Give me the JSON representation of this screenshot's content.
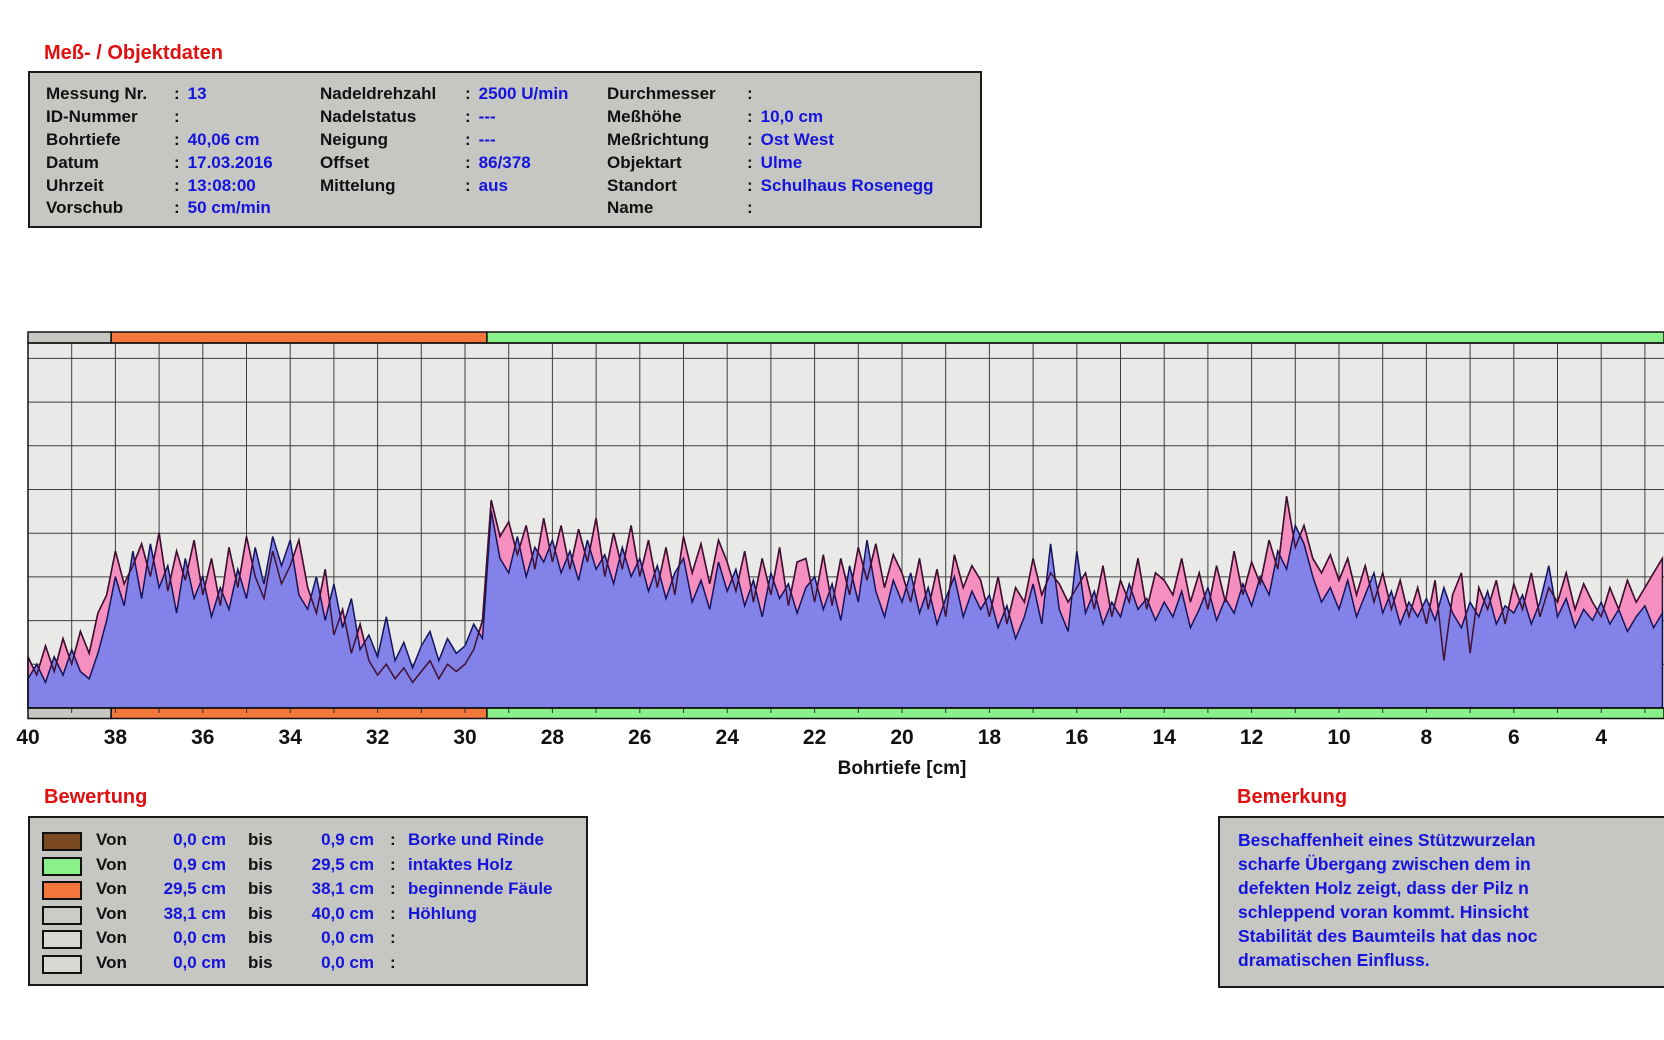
{
  "meta": {
    "title": "Meß- / Objektdaten",
    "columns": [
      {
        "rows": [
          {
            "label": "Messung Nr.",
            "value": "13"
          },
          {
            "label": "ID-Nummer",
            "value": ""
          },
          {
            "label": "Bohrtiefe",
            "value": "40,06 cm"
          },
          {
            "label": "Datum",
            "value": "17.03.2016"
          },
          {
            "label": "Uhrzeit",
            "value": "13:08:00"
          },
          {
            "label": "Vorschub",
            "value": "50 cm/min"
          }
        ]
      },
      {
        "rows": [
          {
            "label": "Nadeldrehzahl",
            "value": "2500 U/min"
          },
          {
            "label": "Nadelstatus",
            "value": "---"
          },
          {
            "label": "Neigung",
            "value": "---"
          },
          {
            "label": "Offset",
            "value": "86/378"
          },
          {
            "label": "Mittelung",
            "value": "aus"
          }
        ]
      },
      {
        "rows": [
          {
            "label": "Durchmesser",
            "value": ""
          },
          {
            "label": "Meßhöhe",
            "value": "10,0 cm"
          },
          {
            "label": "Meßrichtung",
            "value": "Ost West"
          },
          {
            "label": "Objektart",
            "value": "Ulme"
          },
          {
            "label": "Standort",
            "value": "Schulhaus Rosenegg"
          },
          {
            "label": "Name",
            "value": ""
          }
        ]
      }
    ]
  },
  "chart_data": {
    "type": "area",
    "xlabel": "Bohrtiefe [cm]",
    "x_axis": {
      "min": 0,
      "max": 40,
      "reversed": true,
      "tick_step": 2,
      "ticks": [
        40,
        38,
        36,
        34,
        32,
        30,
        28,
        26,
        24,
        22,
        20,
        18,
        16,
        14,
        12,
        10,
        8,
        6,
        4
      ],
      "visible_right_edge_cm": 2.6
    },
    "ylim": [
      0,
      100
    ],
    "grid": {
      "on": true,
      "x_spacing_cm": 1,
      "y_divisions": 8
    },
    "zones": [
      {
        "von": 0.0,
        "bis": 0.9,
        "color": "#7b4a21",
        "label": "Borke und Rinde"
      },
      {
        "von": 0.9,
        "bis": 29.5,
        "color": "#8af08a",
        "label": "intaktes Holz"
      },
      {
        "von": 29.5,
        "bis": 38.1,
        "color": "#f3773c",
        "label": "beginnende Fäule"
      },
      {
        "von": 38.1,
        "bis": 40.0,
        "color": "#c6c6c3",
        "label": "Höhlung"
      }
    ],
    "x_start": 40.0,
    "x_step": -0.2,
    "series": [
      {
        "name": "feed-curve",
        "fill": "#f48fc0",
        "stroke": "#401030",
        "values": [
          14,
          9,
          17,
          10,
          19,
          12,
          21,
          15,
          26,
          31,
          43,
          34,
          39,
          45,
          36,
          48,
          32,
          43,
          35,
          46,
          31,
          41,
          28,
          44,
          33,
          47,
          36,
          30,
          43,
          34,
          39,
          46,
          33,
          26,
          38,
          20,
          27,
          15,
          23,
          13,
          9,
          12,
          8,
          11,
          7,
          10,
          13,
          8,
          12,
          10,
          12,
          16,
          24,
          57,
          47,
          51,
          42,
          50,
          38,
          52,
          40,
          50,
          38,
          49,
          40,
          52,
          36,
          48,
          38,
          50,
          36,
          46,
          33,
          44,
          31,
          47,
          37,
          45,
          34,
          46,
          40,
          32,
          43,
          29,
          41,
          31,
          44,
          28,
          40,
          41,
          29,
          42,
          28,
          41,
          31,
          44,
          35,
          45,
          33,
          42,
          37,
          29,
          41,
          27,
          38,
          25,
          42,
          33,
          39,
          35,
          25,
          36,
          23,
          33,
          29,
          41,
          31,
          37,
          34,
          29,
          33,
          37,
          27,
          39,
          25,
          35,
          29,
          41,
          27,
          37,
          35,
          31,
          41,
          29,
          37,
          27,
          39,
          29,
          43,
          31,
          40,
          34,
          46,
          38,
          58,
          44,
          50,
          41,
          37,
          42,
          35,
          41,
          31,
          39,
          29,
          37,
          27,
          35,
          25,
          33,
          23,
          35,
          13,
          31,
          37,
          15,
          33,
          27,
          35,
          23,
          34,
          27,
          37,
          25,
          33,
          29,
          37,
          27,
          34,
          29,
          25,
          33,
          27,
          35,
          29,
          33,
          37,
          41
        ]
      },
      {
        "name": "drill-curve",
        "fill": "#8282e8",
        "stroke": "#14145a",
        "values": [
          8,
          12,
          7,
          14,
          9,
          16,
          10,
          8,
          15,
          24,
          36,
          28,
          43,
          30,
          45,
          33,
          39,
          26,
          41,
          30,
          36,
          25,
          33,
          27,
          38,
          30,
          44,
          34,
          47,
          39,
          46,
          31,
          27,
          36,
          24,
          34,
          22,
          30,
          16,
          20,
          14,
          25,
          13,
          18,
          11,
          17,
          21,
          13,
          19,
          15,
          17,
          23,
          19,
          54,
          41,
          37,
          47,
          36,
          44,
          40,
          46,
          37,
          43,
          35,
          46,
          38,
          42,
          34,
          44,
          36,
          41,
          32,
          39,
          30,
          37,
          41,
          29,
          35,
          27,
          40,
          32,
          38,
          28,
          35,
          25,
          37,
          30,
          34,
          26,
          33,
          36,
          27,
          34,
          24,
          39,
          29,
          46,
          32,
          25,
          35,
          29,
          37,
          26,
          33,
          23,
          30,
          36,
          25,
          32,
          27,
          31,
          22,
          28,
          19,
          25,
          34,
          23,
          45,
          27,
          21,
          43,
          26,
          32,
          23,
          29,
          25,
          34,
          27,
          30,
          24,
          29,
          25,
          32,
          22,
          27,
          33,
          24,
          30,
          26,
          34,
          28,
          36,
          31,
          43,
          38,
          50,
          45,
          36,
          29,
          33,
          27,
          35,
          25,
          31,
          37,
          26,
          32,
          23,
          29,
          25,
          30,
          24,
          33,
          26,
          22,
          29,
          25,
          32,
          23,
          28,
          26,
          31,
          23,
          29,
          39,
          25,
          30,
          22,
          27,
          24,
          29,
          23,
          27,
          21,
          25,
          28,
          22,
          26
        ]
      }
    ],
    "plot_bg": "#e9e9e7",
    "grid_color": "#3f3f3f"
  },
  "bewertung": {
    "title": "Bewertung",
    "von_label": "Von",
    "bis_label": "bis",
    "rows": [
      {
        "color": "#7b4a21",
        "von": "0,0 cm",
        "bis": "0,9 cm",
        "text": "Borke und Rinde"
      },
      {
        "color": "#8af08a",
        "von": "0,9 cm",
        "bis": "29,5 cm",
        "text": "intaktes Holz"
      },
      {
        "color": "#f3773c",
        "von": "29,5 cm",
        "bis": "38,1 cm",
        "text": "beginnende Fäule"
      },
      {
        "color": "#cbcbc8",
        "von": "38,1 cm",
        "bis": "40,0 cm",
        "text": "Höhlung"
      },
      {
        "color": "#d8d8d5",
        "von": "0,0 cm",
        "bis": "0,0 cm",
        "text": ""
      },
      {
        "color": "#d8d8d5",
        "von": "0,0 cm",
        "bis": "0,0 cm",
        "text": ""
      }
    ]
  },
  "bemerkung": {
    "title": "Bemerkung",
    "lines": [
      "Beschaffenheit eines Stützwurzelan",
      "scharfe Übergang zwischen dem in",
      "defekten Holz zeigt, dass der Pilz n",
      "schleppend voran kommt. Hinsicht",
      "Stabilität des Baumteils hat das noc",
      "dramatischen Einfluss."
    ]
  },
  "colors": {
    "heading_red": "#e01010",
    "value_blue": "#1414dd",
    "panel_gray": "#c6c6c3"
  }
}
